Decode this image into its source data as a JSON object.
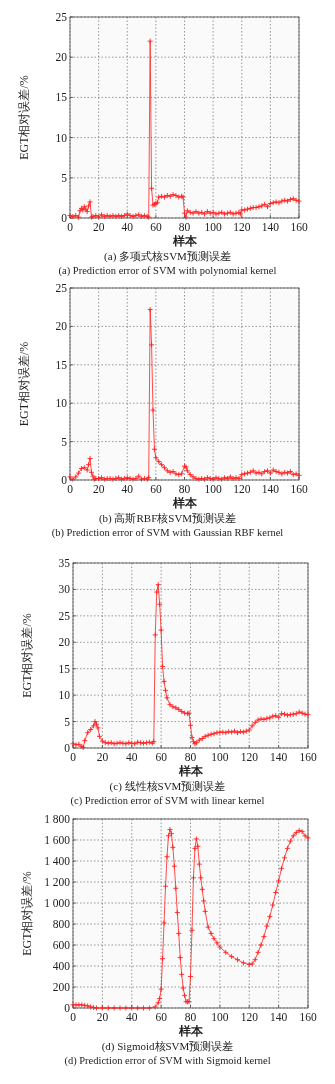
{
  "chart_data": [
    {
      "type": "line",
      "title": "(a) 多项式核SVM预测误差",
      "subtitle": "(a) Prediction error of SVM with polynomial kernel",
      "xlabel": "样本",
      "ylabel": "EGT相对误差/%",
      "xlim": [
        0,
        160
      ],
      "ylim": [
        0,
        25
      ],
      "xticks": [
        0,
        20,
        40,
        60,
        80,
        100,
        120,
        140,
        160
      ],
      "yticks": [
        0,
        5,
        10,
        15,
        20,
        25
      ],
      "grid": true,
      "marker": "cross",
      "line_style": "solid",
      "x": [
        0,
        2,
        4,
        6,
        7,
        8,
        9,
        10,
        11,
        12,
        13,
        14,
        15,
        16,
        18,
        20,
        22,
        24,
        26,
        28,
        30,
        32,
        34,
        36,
        38,
        40,
        42,
        44,
        46,
        48,
        50,
        52,
        54,
        55,
        56,
        57,
        58,
        59,
        60,
        61,
        62,
        64,
        66,
        68,
        70,
        72,
        74,
        76,
        78,
        79,
        80,
        81,
        82,
        84,
        86,
        88,
        90,
        92,
        94,
        96,
        98,
        100,
        102,
        104,
        106,
        108,
        110,
        112,
        114,
        116,
        118,
        119,
        120,
        122,
        124,
        126,
        128,
        130,
        132,
        134,
        136,
        138,
        140,
        142,
        144,
        146,
        148,
        150,
        152,
        154,
        156,
        158,
        160
      ],
      "series": [
        {
          "color": "#ff2020",
          "values": [
            0.3,
            0.2,
            0.3,
            0.1,
            0.9,
            1.2,
            1.0,
            1.4,
            1.1,
            0.8,
            1.5,
            2.0,
            0.1,
            0.2,
            0.3,
            0.1,
            0.4,
            0.2,
            0.3,
            0.2,
            0.3,
            0.2,
            0.3,
            0.2,
            0.3,
            0.5,
            0.3,
            0.2,
            0.3,
            0.4,
            0.2,
            0.3,
            0.2,
            0.1,
            22,
            3.7,
            1.6,
            1.7,
            1.8,
            1.9,
            2.6,
            2.7,
            2.6,
            2.8,
            2.7,
            2.9,
            2.8,
            2.6,
            2.7,
            2.6,
            0.6,
            0.1,
            0.9,
            0.7,
            0.6,
            0.8,
            0.6,
            0.7,
            0.5,
            0.8,
            0.6,
            0.7,
            0.5,
            0.6,
            0.7,
            0.5,
            0.6,
            0.7,
            0.5,
            0.6,
            0.7,
            0.5,
            1.0,
            1.0,
            1.1,
            1.2,
            1.3,
            1.3,
            1.4,
            1.5,
            1.7,
            1.4,
            1.8,
            1.9,
            2.0,
            1.9,
            2.1,
            2.2,
            2.1,
            2.3,
            2.4,
            2.2,
            2.1
          ]
        }
      ]
    },
    {
      "type": "line",
      "title": "(b) 高斯RBF核SVM预测误差",
      "subtitle": "(b) Prediction error of SVM with Gaussian RBF kernel",
      "xlabel": "样本",
      "ylabel": "EGT相对误差/%",
      "xlim": [
        0,
        160
      ],
      "ylim": [
        0,
        25
      ],
      "xticks": [
        0,
        20,
        40,
        60,
        80,
        100,
        120,
        140,
        160
      ],
      "yticks": [
        0,
        5,
        10,
        15,
        20,
        25
      ],
      "grid": true,
      "marker": "cross",
      "line_style": "solid",
      "x": [
        0,
        2,
        4,
        6,
        8,
        10,
        12,
        13,
        14,
        15,
        16,
        17,
        18,
        20,
        22,
        24,
        26,
        28,
        30,
        32,
        34,
        36,
        38,
        40,
        42,
        44,
        46,
        48,
        50,
        52,
        54,
        55,
        56,
        57,
        58,
        59,
        60,
        62,
        64,
        66,
        68,
        70,
        72,
        74,
        76,
        78,
        80,
        81,
        82,
        84,
        86,
        88,
        90,
        92,
        94,
        96,
        98,
        100,
        102,
        104,
        106,
        108,
        110,
        112,
        114,
        116,
        118,
        120,
        122,
        124,
        126,
        128,
        130,
        132,
        134,
        136,
        138,
        140,
        142,
        144,
        146,
        148,
        150,
        152,
        154,
        156,
        158,
        160
      ],
      "series": [
        {
          "color": "#ff2020",
          "values": [
            0.4,
            0.1,
            0.4,
            0.9,
            1.5,
            1.6,
            1.3,
            2.0,
            2.8,
            1.0,
            0.5,
            0.1,
            0.2,
            0.2,
            0.3,
            0.1,
            0.2,
            0.2,
            0.1,
            0.2,
            0.3,
            0.1,
            0.2,
            0.3,
            0.2,
            0.1,
            0.2,
            0.5,
            0.1,
            0.2,
            0.1,
            0.3,
            22.2,
            17.6,
            9.1,
            4.0,
            2.9,
            2.4,
            2.0,
            1.6,
            1.2,
            1.0,
            1.1,
            0.8,
            0.7,
            0.8,
            1.8,
            1.7,
            1.2,
            0.7,
            0.4,
            0.2,
            0.1,
            0.2,
            0.1,
            0.3,
            0.2,
            0.1,
            0.3,
            0.2,
            0.1,
            0.3,
            0.2,
            0.4,
            0.2,
            0.3,
            0.2,
            0.7,
            0.8,
            0.9,
            1.0,
            1.2,
            0.9,
            1.0,
            0.8,
            1.1,
            1.2,
            0.9,
            1.3,
            1.1,
            1.0,
            0.8,
            1.0,
            0.9,
            1.1,
            0.7,
            0.8,
            0.6
          ]
        }
      ]
    },
    {
      "type": "line",
      "title": "(c) 线性核SVM预测误差",
      "subtitle": "(c) Prediction error of SVM with linear kernel",
      "xlabel": "样本",
      "ylabel": "EGT相对误差/%",
      "xlim": [
        0,
        160
      ],
      "ylim": [
        0,
        35
      ],
      "xticks": [
        0,
        20,
        40,
        60,
        80,
        100,
        120,
        140,
        160
      ],
      "yticks": [
        0,
        5,
        10,
        15,
        20,
        25,
        30,
        35
      ],
      "grid": true,
      "marker": "cross",
      "line_style": "solid",
      "x": [
        0,
        2,
        4,
        6,
        7,
        8,
        10,
        12,
        14,
        15,
        16,
        17,
        18,
        20,
        22,
        24,
        26,
        28,
        30,
        32,
        34,
        36,
        38,
        40,
        42,
        44,
        46,
        48,
        50,
        52,
        54,
        55,
        56,
        57,
        58,
        59,
        60,
        61,
        62,
        63,
        64,
        66,
        68,
        70,
        72,
        74,
        76,
        78,
        79,
        80,
        81,
        82,
        83,
        84,
        86,
        88,
        90,
        92,
        94,
        96,
        98,
        100,
        102,
        104,
        106,
        108,
        110,
        112,
        114,
        116,
        118,
        120,
        122,
        124,
        126,
        128,
        130,
        132,
        134,
        136,
        138,
        140,
        142,
        144,
        146,
        148,
        150,
        152,
        154,
        156,
        158,
        160
      ],
      "series": [
        {
          "color": "#ff2020",
          "values": [
            0.8,
            0.6,
            0.7,
            0.3,
            0.1,
            1.4,
            2.9,
            3.5,
            4.2,
            5.0,
            4.5,
            3.8,
            2.2,
            1.3,
            1.0,
            0.9,
            1.0,
            0.8,
            0.9,
            1.0,
            0.9,
            0.8,
            1.0,
            0.9,
            0.8,
            1.1,
            1.0,
            0.9,
            1.0,
            1.1,
            0.9,
            1.2,
            21.4,
            29.5,
            30.9,
            27.2,
            22.3,
            15.4,
            12.6,
            10.9,
            9.5,
            8.2,
            7.8,
            7.6,
            7.3,
            6.9,
            6.6,
            6.5,
            6.6,
            4.3,
            2.0,
            1.2,
            0.8,
            1.0,
            1.5,
            1.8,
            2.2,
            2.4,
            2.6,
            2.7,
            2.9,
            3.0,
            3.0,
            2.9,
            3.1,
            3.0,
            3.2,
            2.9,
            3.1,
            3.0,
            3.2,
            3.4,
            4.2,
            4.8,
            5.3,
            5.5,
            5.4,
            5.6,
            5.7,
            6.0,
            6.1,
            5.8,
            6.5,
            6.4,
            6.2,
            6.3,
            6.4,
            6.5,
            6.8,
            6.6,
            6.4,
            6.3
          ]
        }
      ]
    },
    {
      "type": "line",
      "title": "(d) Sigmoid核SVM预测误差",
      "subtitle": "(d) Prediction error of SVM with Sigmoid kernel",
      "xlabel": "样本",
      "ylabel": "EGT相对误差/%",
      "xlim": [
        0,
        160
      ],
      "ylim": [
        0,
        1800
      ],
      "xticks": [
        0,
        20,
        40,
        60,
        80,
        100,
        120,
        140,
        160
      ],
      "yticks": [
        0,
        200,
        400,
        600,
        800,
        {
          "value": 1000,
          "label": "1 000"
        },
        {
          "value": 1200,
          "label": "1 200"
        },
        {
          "value": 1400,
          "label": "1 400"
        },
        {
          "value": 1600,
          "label": "1 600"
        },
        {
          "value": 1800,
          "label": "1 800"
        }
      ],
      "grid": true,
      "marker": "cross",
      "line_style": "solid",
      "x": [
        0,
        2,
        4,
        6,
        8,
        10,
        12,
        14,
        16,
        20,
        24,
        28,
        32,
        36,
        40,
        44,
        48,
        52,
        56,
        58,
        59,
        60,
        61,
        62,
        63,
        64,
        65,
        66,
        67,
        68,
        69,
        70,
        71,
        72,
        73,
        74,
        75,
        76,
        77,
        78,
        79,
        80,
        81,
        82,
        83,
        84,
        85,
        86,
        87,
        88,
        89,
        90,
        92,
        94,
        96,
        98,
        100,
        104,
        108,
        112,
        116,
        120,
        122,
        124,
        126,
        128,
        130,
        132,
        134,
        136,
        138,
        140,
        142,
        144,
        146,
        148,
        150,
        152,
        154,
        156,
        158,
        160
      ],
      "series": [
        {
          "color": "#ff2020",
          "values": [
            30,
            30,
            30,
            30,
            25,
            20,
            10,
            5,
            0,
            0,
            0,
            0,
            0,
            0,
            0,
            0,
            0,
            0,
            10,
            50,
            90,
            180,
            470,
            810,
            1160,
            1440,
            1640,
            1700,
            1660,
            1530,
            1350,
            1140,
            910,
            710,
            480,
            320,
            190,
            120,
            60,
            60,
            60,
            300,
            740,
            1240,
            1520,
            1610,
            1540,
            1370,
            1240,
            1130,
            1020,
            920,
            770,
            710,
            660,
            620,
            580,
            530,
            490,
            460,
            430,
            415,
            420,
            460,
            530,
            600,
            680,
            780,
            870,
            980,
            1100,
            1210,
            1330,
            1430,
            1520,
            1590,
            1640,
            1670,
            1690,
            1680,
            1640,
            1620
          ]
        }
      ]
    }
  ]
}
